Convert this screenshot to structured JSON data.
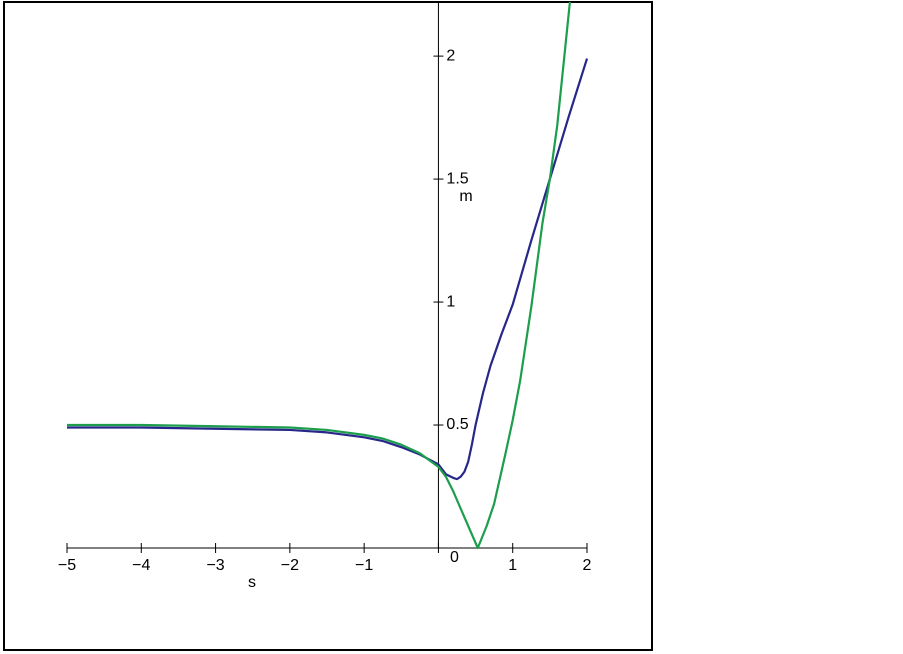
{
  "chart_data": {
    "type": "line",
    "x_label": "s",
    "y_label": "m",
    "xlim": [
      -5,
      2
    ],
    "ylim": [
      0,
      2.22
    ],
    "xticks": [
      {
        "value": -5,
        "label": "−5"
      },
      {
        "value": -4,
        "label": "−4"
      },
      {
        "value": -3,
        "label": "−3"
      },
      {
        "value": -2,
        "label": "−2"
      },
      {
        "value": -1,
        "label": "−1"
      },
      0,
      1,
      2
    ],
    "yticks": [
      0.5,
      1,
      1.5,
      2
    ],
    "series": [
      {
        "color": "#27278a",
        "x": [
          -5,
          -4,
          -3,
          -2,
          -1.5,
          -1,
          -0.75,
          -0.5,
          -0.25,
          0,
          0.1,
          0.2,
          0.25,
          0.3,
          0.35,
          0.4,
          0.45,
          0.5,
          0.6,
          0.7,
          0.85,
          1,
          1.25,
          1.5,
          1.75,
          2
        ],
        "values": [
          0.49,
          0.49,
          0.485,
          0.48,
          0.47,
          0.45,
          0.435,
          0.41,
          0.38,
          0.34,
          0.3,
          0.285,
          0.28,
          0.29,
          0.31,
          0.35,
          0.42,
          0.5,
          0.63,
          0.74,
          0.87,
          0.99,
          1.25,
          1.5,
          1.75,
          1.99
        ]
      },
      {
        "color": "#1c9e4c",
        "x": [
          -5,
          -4,
          -3,
          -2,
          -1.5,
          -1,
          -0.75,
          -0.5,
          -0.25,
          0,
          0.1,
          0.2,
          0.3,
          0.4,
          0.53,
          0.65,
          0.75,
          0.9,
          1,
          1.1,
          1.25,
          1.4,
          1.5,
          1.6,
          1.77
        ],
        "values": [
          0.5,
          0.5,
          0.495,
          0.49,
          0.48,
          0.46,
          0.445,
          0.42,
          0.385,
          0.33,
          0.29,
          0.23,
          0.16,
          0.09,
          0,
          0.09,
          0.18,
          0.38,
          0.52,
          0.68,
          0.98,
          1.32,
          1.5,
          1.72,
          2.22
        ]
      }
    ]
  }
}
